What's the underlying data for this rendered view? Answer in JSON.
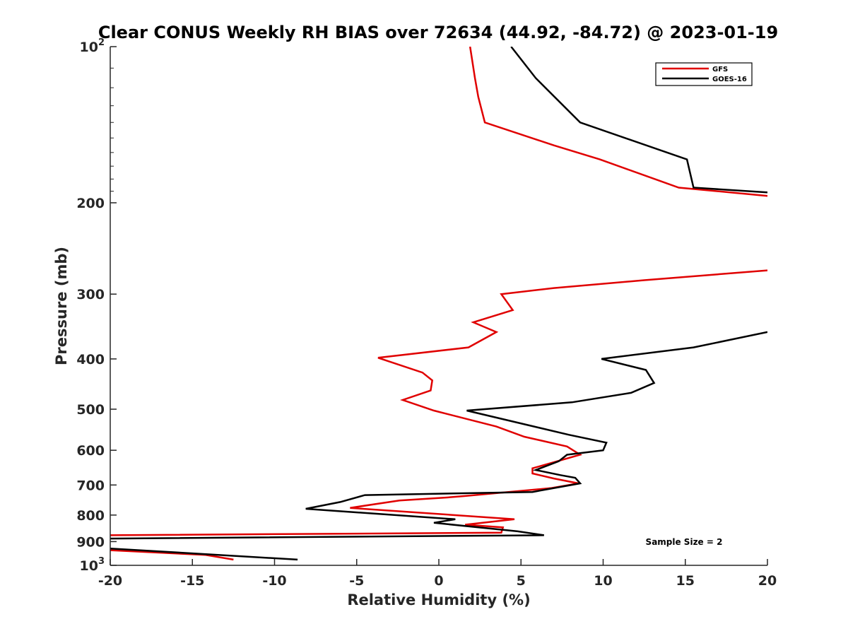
{
  "chart_data": {
    "type": "line",
    "title": "Clear CONUS Weekly RH BIAS over 72634 (44.92, -84.72) @ 2023-01-19",
    "xlabel": "Relative Humidity (%)",
    "ylabel": "Pressure (mb)",
    "xlim": [
      -20,
      20
    ],
    "ylim": [
      100,
      1000
    ],
    "yscale": "log",
    "y_reversed": true,
    "x_ticks": [
      "-20",
      "-15",
      "-10",
      "-5",
      "0",
      "5",
      "10",
      "15",
      "20"
    ],
    "y_ticks": [
      {
        "base": "10",
        "exp": "2",
        "value": 100
      },
      {
        "base": "200",
        "exp": "",
        "value": 200
      },
      {
        "base": "300",
        "exp": "",
        "value": 300
      },
      {
        "base": "400",
        "exp": "",
        "value": 400
      },
      {
        "base": "500",
        "exp": "",
        "value": 500
      },
      {
        "base": "600",
        "exp": "",
        "value": 600
      },
      {
        "base": "700",
        "exp": "",
        "value": 700
      },
      {
        "base": "800",
        "exp": "",
        "value": 800
      },
      {
        "base": "900",
        "exp": "",
        "value": 900
      },
      {
        "base": "10",
        "exp": "3",
        "value": 1000
      }
    ],
    "annotation": "Sample Size = 2",
    "legend_position": "top-right",
    "series": [
      {
        "name": "GFS",
        "color": "#e00000",
        "segments": [
          [
            [
              1.9,
              100
            ],
            [
              2.2,
              115
            ],
            [
              2.4,
              125
            ],
            [
              2.8,
              140
            ],
            [
              7.0,
              155
            ],
            [
              9.8,
              165
            ],
            [
              14.6,
              187
            ],
            [
              20,
              194
            ]
          ],
          [
            [
              20,
              270
            ],
            [
              12.5,
              282
            ],
            [
              7.0,
              292
            ],
            [
              3.8,
              300
            ],
            [
              4.5,
              322
            ],
            [
              2.1,
              340
            ],
            [
              3.5,
              355
            ],
            [
              1.8,
              380
            ],
            [
              -3.7,
              398
            ],
            [
              -1.0,
              425
            ],
            [
              -0.4,
              440
            ],
            [
              -0.5,
              460
            ],
            [
              -2.2,
              480
            ],
            [
              -0.3,
              503
            ],
            [
              3.5,
              540
            ],
            [
              5.2,
              565
            ],
            [
              7.8,
              590
            ],
            [
              8.6,
              612
            ],
            [
              5.7,
              650
            ],
            [
              5.7,
              665
            ],
            [
              7.0,
              680
            ],
            [
              8.5,
              695
            ],
            [
              6.8,
              710
            ],
            [
              1.6,
              735
            ],
            [
              0.5,
              740
            ],
            [
              -2.4,
              750
            ],
            [
              -5.4,
              775
            ],
            [
              4.6,
              815
            ],
            [
              1.6,
              835
            ],
            [
              3.9,
              845
            ],
            [
              3.8,
              865
            ],
            [
              -20,
              875
            ]
          ],
          [
            [
              -20,
              935
            ],
            [
              -14.2,
              955
            ],
            [
              -12.5,
              975
            ]
          ]
        ]
      },
      {
        "name": "GOES-16",
        "color": "#000000",
        "segments": [
          [
            [
              4.4,
              100
            ],
            [
              5.9,
              115
            ],
            [
              8.6,
              140
            ],
            [
              15.1,
              165
            ],
            [
              15.5,
              187
            ],
            [
              20,
              191
            ]
          ],
          [
            [
              20,
              355
            ],
            [
              15.5,
              380
            ],
            [
              9.9,
              400
            ],
            [
              12.6,
              420
            ],
            [
              13.1,
              445
            ],
            [
              11.7,
              465
            ],
            [
              8.1,
              485
            ],
            [
              1.7,
              503
            ],
            [
              7.9,
              560
            ],
            [
              10.2,
              580
            ],
            [
              10.0,
              600
            ],
            [
              7.8,
              612
            ],
            [
              7.3,
              630
            ],
            [
              5.9,
              655
            ],
            [
              7.4,
              670
            ],
            [
              8.3,
              678
            ],
            [
              8.6,
              695
            ],
            [
              5.7,
              722
            ],
            [
              -4.5,
              732
            ],
            [
              -6.0,
              755
            ],
            [
              -8.1,
              778
            ],
            [
              1.0,
              815
            ],
            [
              -0.3,
              828
            ],
            [
              4.8,
              860
            ],
            [
              6.4,
              875
            ],
            [
              -20,
              888
            ]
          ],
          [
            [
              -20,
              928
            ],
            [
              -8.6,
              975
            ]
          ]
        ]
      }
    ]
  }
}
